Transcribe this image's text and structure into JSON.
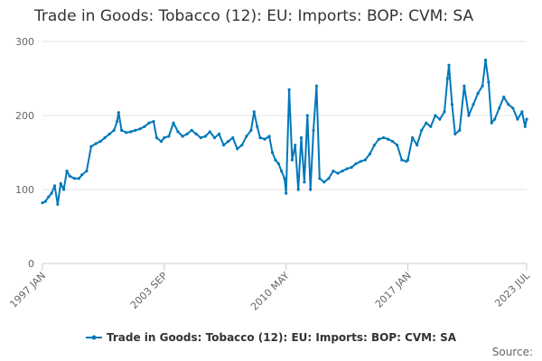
{
  "chart_data": {
    "type": "line",
    "title": "Trade in Goods: Tobacco (12): EU: Imports: BOP: CVM: SA",
    "xlabel": "",
    "ylabel": "",
    "ylim": [
      0,
      300
    ],
    "y_ticks": [
      0,
      100,
      200,
      300
    ],
    "x_range": [
      "1997-01",
      "2023-07"
    ],
    "x_tick_labels": [
      "1997 JAN",
      "2003 SEP",
      "2010 MAY",
      "2017 JAN",
      "2023 JUL"
    ],
    "grid": true,
    "legend_position": "bottom",
    "series": [
      {
        "name": "Trade in Goods: Tobacco (12): EU: Imports: BOP: CVM: SA",
        "color": "#0077bb",
        "points": [
          [
            "1997-01",
            82
          ],
          [
            "1997-03",
            84
          ],
          [
            "1997-05",
            90
          ],
          [
            "1997-07",
            95
          ],
          [
            "1997-09",
            105
          ],
          [
            "1997-11",
            80
          ],
          [
            "1998-01",
            108
          ],
          [
            "1998-03",
            100
          ],
          [
            "1998-05",
            125
          ],
          [
            "1998-07",
            118
          ],
          [
            "1998-10",
            115
          ],
          [
            "1999-01",
            115
          ],
          [
            "1999-03",
            120
          ],
          [
            "1999-06",
            125
          ],
          [
            "1999-09",
            158
          ],
          [
            "1999-12",
            162
          ],
          [
            "2000-03",
            165
          ],
          [
            "2000-06",
            170
          ],
          [
            "2000-09",
            175
          ],
          [
            "2000-12",
            180
          ],
          [
            "2001-02",
            192
          ],
          [
            "2001-03",
            204
          ],
          [
            "2001-05",
            180
          ],
          [
            "2001-08",
            177
          ],
          [
            "2001-11",
            178
          ],
          [
            "2002-02",
            180
          ],
          [
            "2002-05",
            182
          ],
          [
            "2002-08",
            185
          ],
          [
            "2002-11",
            190
          ],
          [
            "2003-02",
            192
          ],
          [
            "2003-04",
            170
          ],
          [
            "2003-07",
            165
          ],
          [
            "2003-09",
            170
          ],
          [
            "2003-12",
            172
          ],
          [
            "2004-03",
            190
          ],
          [
            "2004-06",
            178
          ],
          [
            "2004-09",
            172
          ],
          [
            "2004-12",
            175
          ],
          [
            "2005-03",
            180
          ],
          [
            "2005-06",
            175
          ],
          [
            "2005-09",
            170
          ],
          [
            "2005-12",
            172
          ],
          [
            "2006-03",
            178
          ],
          [
            "2006-06",
            170
          ],
          [
            "2006-09",
            175
          ],
          [
            "2006-12",
            160
          ],
          [
            "2007-03",
            165
          ],
          [
            "2007-06",
            170
          ],
          [
            "2007-09",
            155
          ],
          [
            "2007-12",
            160
          ],
          [
            "2008-03",
            172
          ],
          [
            "2008-06",
            180
          ],
          [
            "2008-08",
            205
          ],
          [
            "2008-10",
            185
          ],
          [
            "2008-12",
            170
          ],
          [
            "2009-03",
            168
          ],
          [
            "2009-06",
            172
          ],
          [
            "2009-08",
            150
          ],
          [
            "2009-10",
            140
          ],
          [
            "2009-12",
            135
          ],
          [
            "2010-02",
            125
          ],
          [
            "2010-04",
            115
          ],
          [
            "2010-05",
            95
          ],
          [
            "2010-07",
            235
          ],
          [
            "2010-09",
            140
          ],
          [
            "2010-11",
            160
          ],
          [
            "2011-01",
            100
          ],
          [
            "2011-03",
            170
          ],
          [
            "2011-05",
            110
          ],
          [
            "2011-07",
            200
          ],
          [
            "2011-09",
            100
          ],
          [
            "2011-11",
            180
          ],
          [
            "2012-01",
            240
          ],
          [
            "2012-03",
            115
          ],
          [
            "2012-06",
            110
          ],
          [
            "2012-09",
            115
          ],
          [
            "2012-12",
            125
          ],
          [
            "2013-03",
            122
          ],
          [
            "2013-06",
            125
          ],
          [
            "2013-09",
            128
          ],
          [
            "2013-12",
            130
          ],
          [
            "2014-03",
            135
          ],
          [
            "2014-06",
            138
          ],
          [
            "2014-09",
            140
          ],
          [
            "2014-12",
            148
          ],
          [
            "2015-03",
            160
          ],
          [
            "2015-06",
            168
          ],
          [
            "2015-09",
            170
          ],
          [
            "2015-12",
            168
          ],
          [
            "2016-03",
            165
          ],
          [
            "2016-06",
            160
          ],
          [
            "2016-09",
            140
          ],
          [
            "2016-12",
            138
          ],
          [
            "2017-01",
            140
          ],
          [
            "2017-04",
            170
          ],
          [
            "2017-07",
            160
          ],
          [
            "2017-10",
            180
          ],
          [
            "2018-01",
            190
          ],
          [
            "2018-04",
            185
          ],
          [
            "2018-07",
            200
          ],
          [
            "2018-10",
            195
          ],
          [
            "2019-01",
            205
          ],
          [
            "2019-03",
            250
          ],
          [
            "2019-04",
            268
          ],
          [
            "2019-06",
            215
          ],
          [
            "2019-08",
            175
          ],
          [
            "2019-11",
            180
          ],
          [
            "2020-02",
            240
          ],
          [
            "2020-05",
            200
          ],
          [
            "2020-08",
            215
          ],
          [
            "2020-11",
            230
          ],
          [
            "2021-02",
            240
          ],
          [
            "2021-04",
            275
          ],
          [
            "2021-06",
            245
          ],
          [
            "2021-08",
            190
          ],
          [
            "2021-10",
            195
          ],
          [
            "2022-01",
            210
          ],
          [
            "2022-04",
            225
          ],
          [
            "2022-07",
            215
          ],
          [
            "2022-10",
            210
          ],
          [
            "2023-01",
            195
          ],
          [
            "2023-04",
            205
          ],
          [
            "2023-06",
            185
          ],
          [
            "2023-07",
            195
          ]
        ]
      }
    ]
  },
  "source_label": "Source:"
}
